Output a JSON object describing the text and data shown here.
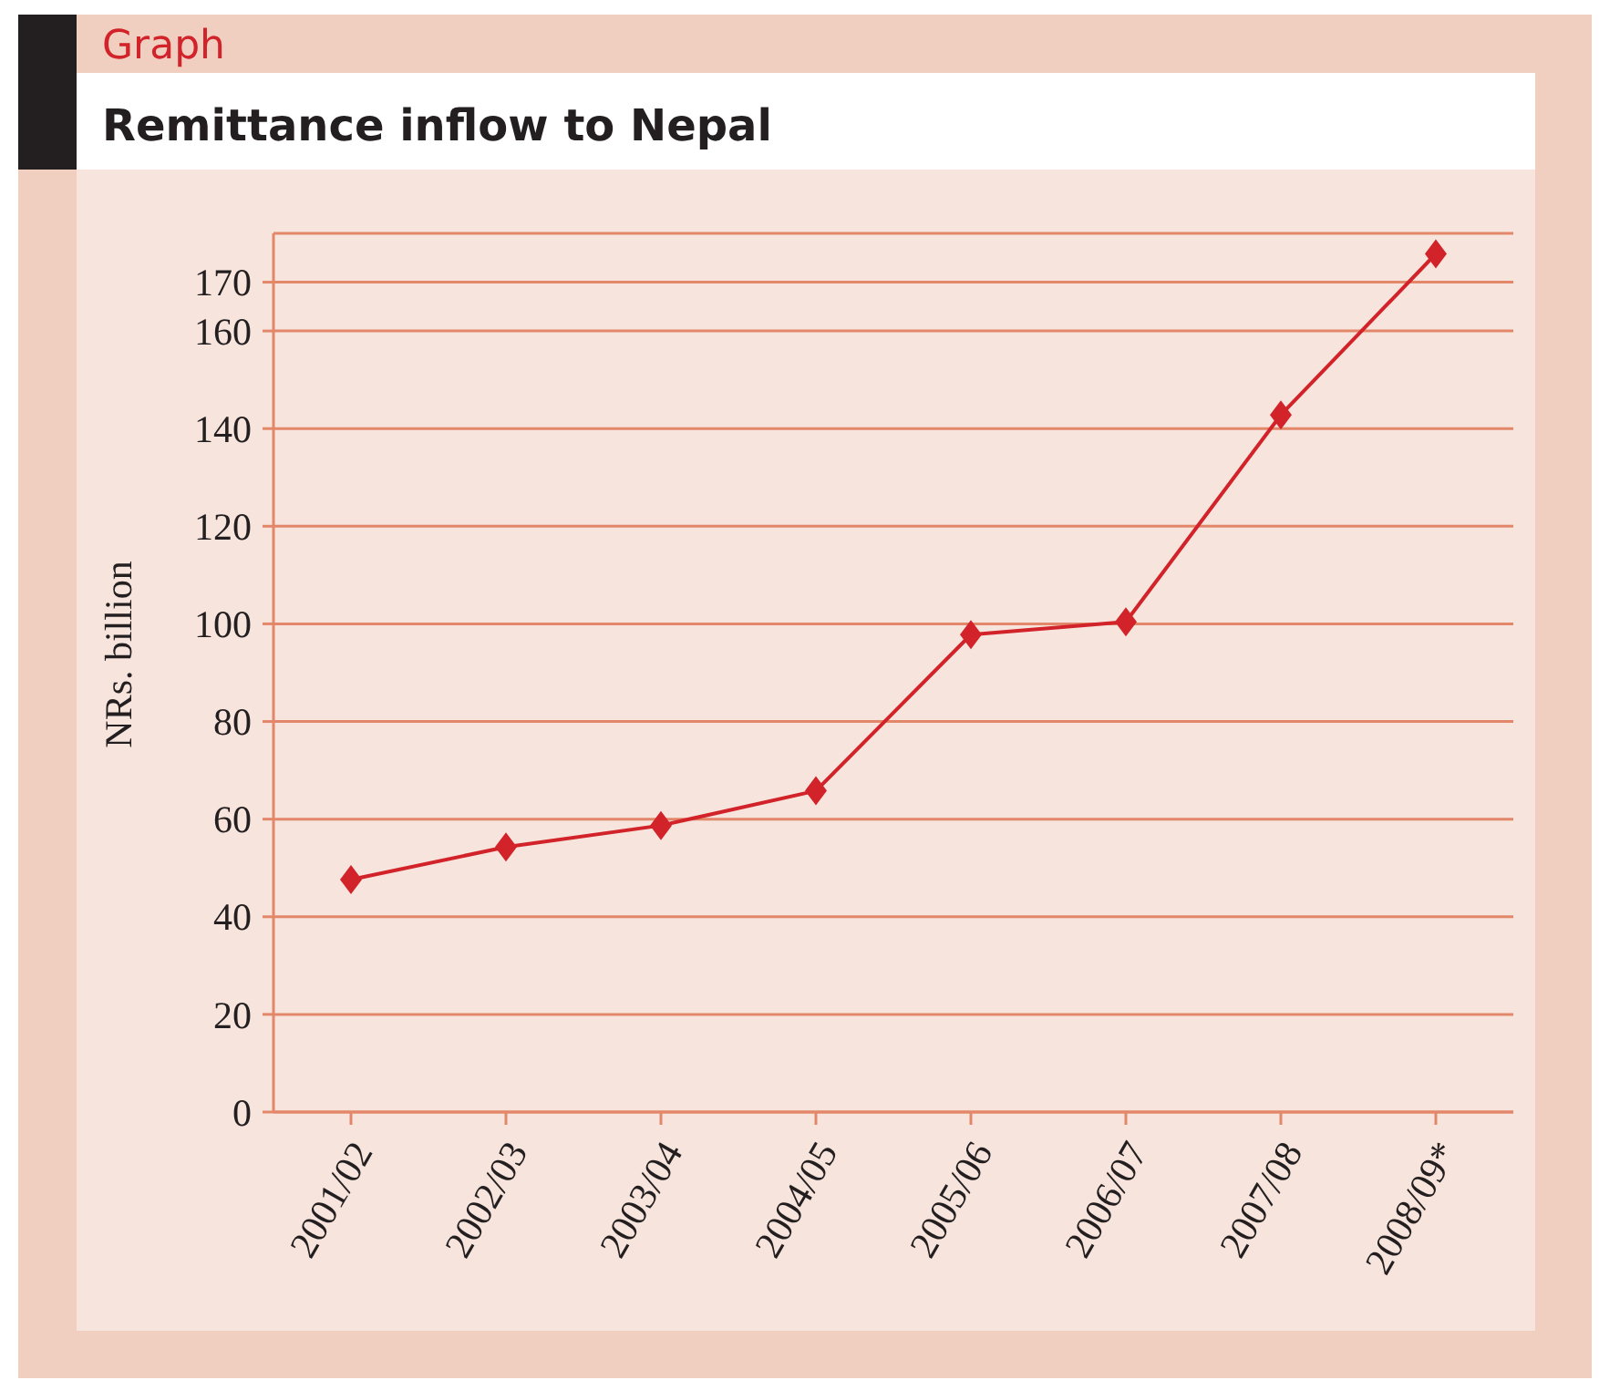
{
  "chart_data": {
    "type": "line",
    "title": "Remittance inflow to Nepal",
    "annotations": [
      "Graph"
    ],
    "ylabel": "NRs. billion",
    "categories": [
      "2001/02",
      "2002/03",
      "2003/04",
      "2004/05",
      "2005/06",
      "2006/07",
      "2007/08",
      "2008/09*"
    ],
    "series": [
      {
        "color": "#d2232a",
        "values": [
          47.6,
          54.3,
          58.7,
          65.8,
          97.8,
          100.4,
          142.8,
          175.8
        ]
      }
    ],
    "ylim": [
      0,
      180
    ],
    "yticks": [
      0,
      20,
      40,
      60,
      80,
      100,
      120,
      140,
      160,
      170
    ],
    "grid": "y",
    "marker": "diamond",
    "line_style": "solid"
  }
}
